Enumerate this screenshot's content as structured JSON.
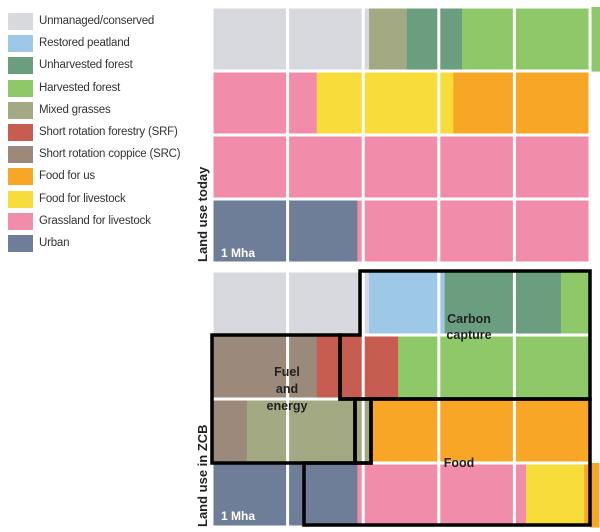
{
  "legend": {
    "items": [
      {
        "key": "unmanaged",
        "label": "Unmanaged/conserved",
        "color": "#d8d9de"
      },
      {
        "key": "peatland",
        "label": "Restored peatland",
        "color": "#9ec8e8"
      },
      {
        "key": "unharvested",
        "label": "Unharvested forest",
        "color": "#6a9e7e"
      },
      {
        "key": "harvested",
        "label": "Harvested forest",
        "color": "#8ec868"
      },
      {
        "key": "grasses",
        "label": "Mixed grasses",
        "color": "#a3aa83"
      },
      {
        "key": "srf",
        "label": "Short rotation forestry (SRF)",
        "color": "#c75c50"
      },
      {
        "key": "src",
        "label": "Short rotation coppice (SRC)",
        "color": "#9b8a7b"
      },
      {
        "key": "food_us",
        "label": "Food for us",
        "color": "#f7a625"
      },
      {
        "key": "food_livestock",
        "label": "Food for livestock",
        "color": "#f8dc3a"
      },
      {
        "key": "grassland",
        "label": "Grassland for livestock",
        "color": "#f18daa"
      },
      {
        "key": "urban",
        "label": "Urban",
        "color": "#6e7d98"
      }
    ]
  },
  "today": {
    "label": "Land use today",
    "unit_label": "1 Mha",
    "rows": [
      [
        [
          "unmanaged",
          5.4
        ],
        [
          "grasses",
          1.3
        ],
        [
          "unharvested",
          1.9
        ],
        [
          "harvested",
          5.4
        ]
      ],
      [
        [
          "grassland",
          3.6
        ],
        [
          "food_livestock",
          4.7
        ],
        [
          "food_us",
          4.7
        ]
      ],
      [
        [
          "grassland",
          13
        ]
      ],
      [
        [
          "urban",
          5.0
        ],
        [
          "grassland",
          8.0
        ]
      ]
    ]
  },
  "zcb": {
    "label": "Land use in ZCB",
    "unit_label": "1 Mha",
    "rows": [
      [
        [
          "unmanaged",
          5.4
        ],
        [
          "peatland",
          2.6
        ],
        [
          "unharvested",
          4.0
        ],
        [
          "harvested",
          1.0
        ]
      ],
      [
        [
          "src",
          3.6
        ],
        [
          "srf",
          2.8
        ],
        [
          "harvested",
          6.6
        ]
      ],
      [
        [
          "src",
          1.2
        ],
        [
          "grasses",
          4.3
        ],
        [
          "food_us",
          7.5
        ]
      ],
      [
        [
          "urban",
          5.0
        ],
        [
          "grassland",
          5.8
        ],
        [
          "food_livestock",
          2.0
        ],
        [
          "food_us",
          0.5
        ]
      ]
    ],
    "regions": {
      "carbon": "Carbon\ncapture",
      "fuel": "Fuel\nand\nenergy",
      "food": "Food"
    }
  }
}
